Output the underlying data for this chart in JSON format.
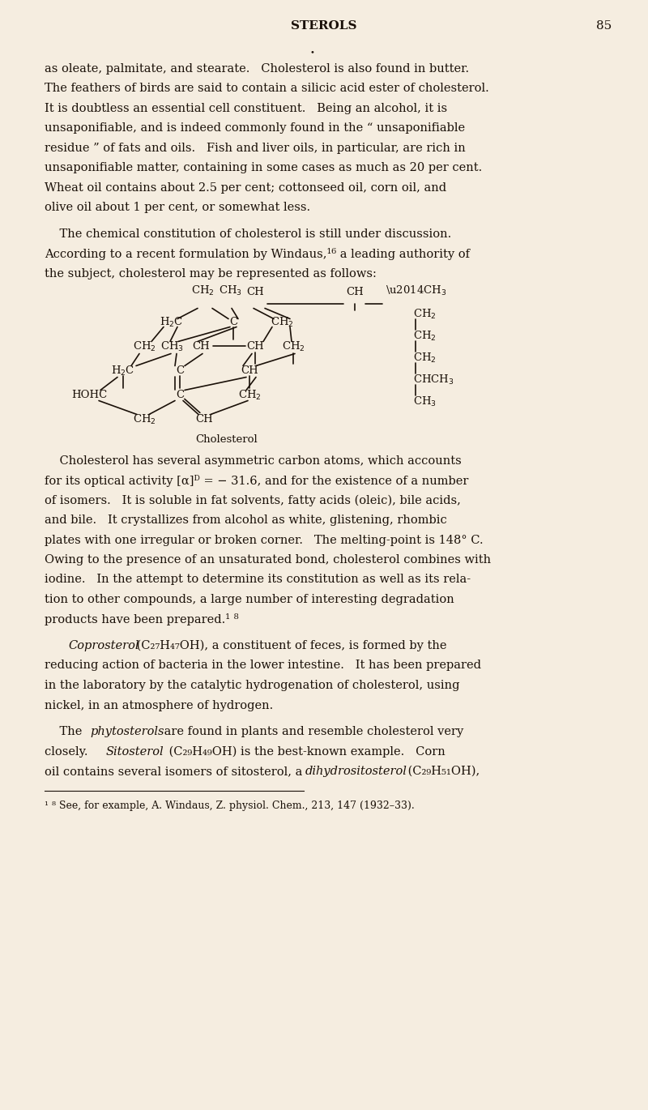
{
  "bg_color": "#f5ede0",
  "text_color": "#1a1008",
  "page_width": 8.0,
  "page_height": 13.7,
  "header_title": "STEROLS",
  "header_page": "85",
  "cholesterol_label": "Cholesterol",
  "footnote": "¹ ⁸ See, for example, A. Windaus, Z. physiol. Chem., 213, 147 (1932–33)."
}
